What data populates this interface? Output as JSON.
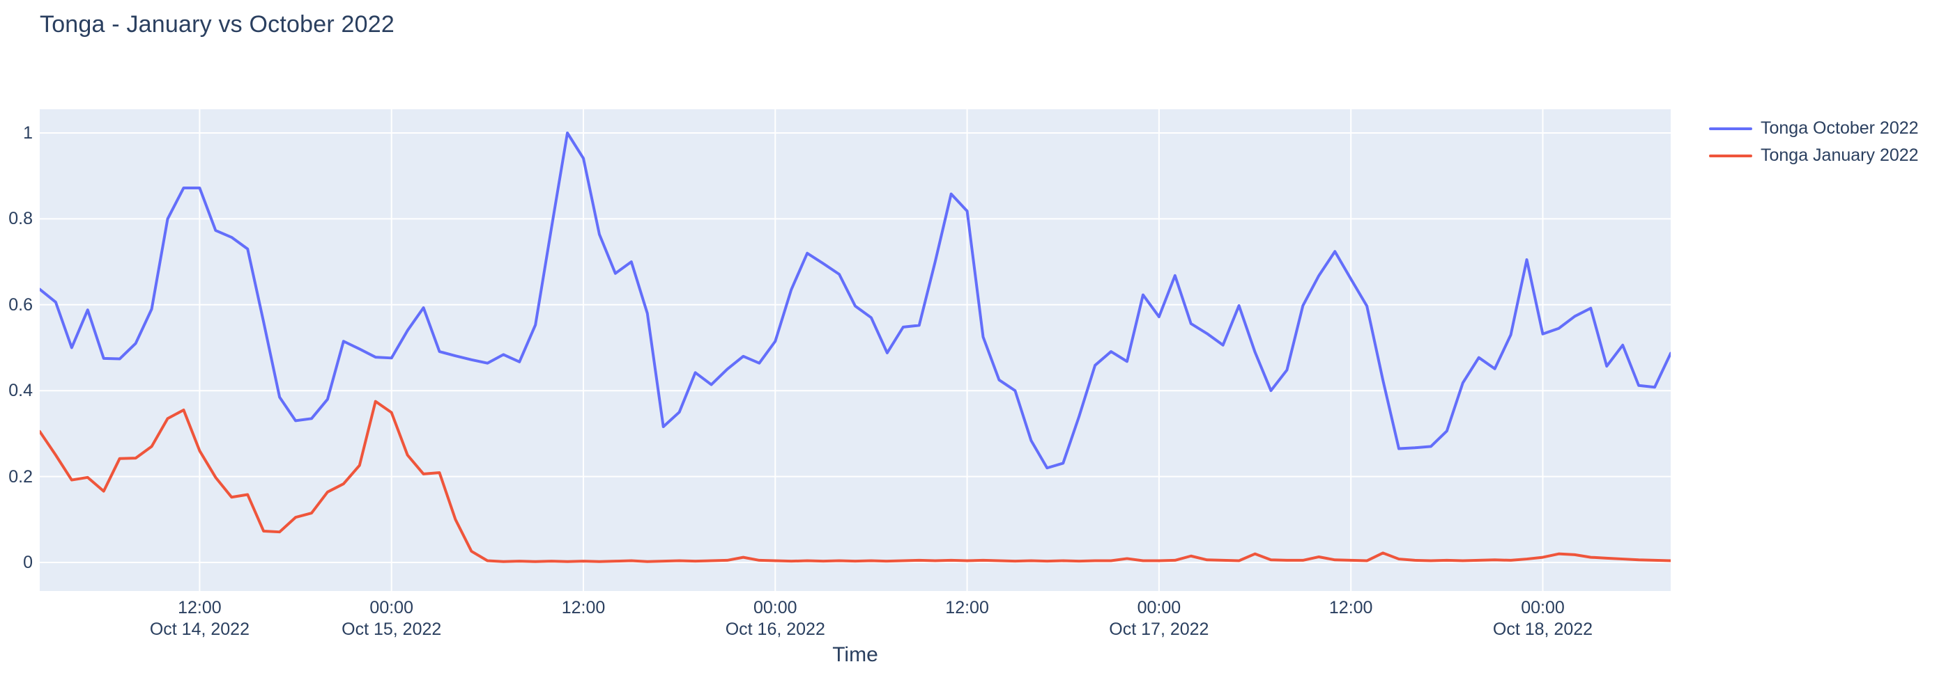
{
  "title": "Tonga - January vs October 2022",
  "colors": {
    "paper_bg": "#ffffff",
    "plot_bg": "#E5ECF6",
    "grid": "#ffffff",
    "text": "#2a3f5f",
    "series_blue": "#636EFA",
    "series_red": "#EF553B"
  },
  "chart_data": {
    "type": "line",
    "title": "Tonga - January vs October 2022",
    "xlabel": "Time",
    "ylabel": "",
    "grid": true,
    "legend_position": "top-right-outside",
    "x_start": "2022-10-14 02:00",
    "x_end": "2022-10-18 08:00",
    "x_step_hours": 1,
    "n_points": 103,
    "ylim": [
      -0.066,
      1.054
    ],
    "yticks": [
      {
        "label": "0",
        "value": 0
      },
      {
        "label": "0.2",
        "value": 0.2
      },
      {
        "label": "0.4",
        "value": 0.4
      },
      {
        "label": "0.6",
        "value": 0.6
      },
      {
        "label": "0.8",
        "value": 0.8
      },
      {
        "label": "1",
        "value": 1
      }
    ],
    "xticks": [
      {
        "time": "12:00",
        "date": "Oct 14, 2022",
        "hour_index": 10
      },
      {
        "time": "00:00",
        "date": "Oct 15, 2022",
        "hour_index": 22
      },
      {
        "time": "12:00",
        "date": "",
        "hour_index": 34
      },
      {
        "time": "00:00",
        "date": "Oct 16, 2022",
        "hour_index": 46
      },
      {
        "time": "12:00",
        "date": "",
        "hour_index": 58
      },
      {
        "time": "00:00",
        "date": "Oct 17, 2022",
        "hour_index": 70
      },
      {
        "time": "12:00",
        "date": "",
        "hour_index": 82
      },
      {
        "time": "00:00",
        "date": "Oct 18, 2022",
        "hour_index": 94
      }
    ],
    "series": [
      {
        "name": "Tonga October 2022",
        "color": "#636EFA",
        "values": [
          0.636,
          0.606,
          0.5,
          0.588,
          0.475,
          0.474,
          0.51,
          0.59,
          0.8,
          0.872,
          0.872,
          0.773,
          0.757,
          0.73,
          0.56,
          0.385,
          0.33,
          0.335,
          0.38,
          0.515,
          0.497,
          0.478,
          0.476,
          0.54,
          0.593,
          0.491,
          0.481,
          0.472,
          0.464,
          0.484,
          0.467,
          0.553,
          0.778,
          1.0,
          0.941,
          0.764,
          0.673,
          0.7,
          0.58,
          0.316,
          0.35,
          0.442,
          0.414,
          0.45,
          0.48,
          0.464,
          0.515,
          0.635,
          0.72,
          0.696,
          0.671,
          0.597,
          0.57,
          0.488,
          0.548,
          0.552,
          0.7,
          0.858,
          0.818,
          0.525,
          0.425,
          0.4,
          0.284,
          0.22,
          0.231,
          0.34,
          0.459,
          0.491,
          0.468,
          0.623,
          0.572,
          0.668,
          0.556,
          0.533,
          0.506,
          0.598,
          0.49,
          0.4,
          0.448,
          0.598,
          0.668,
          0.724,
          0.66,
          0.597,
          0.425,
          0.265,
          0.267,
          0.27,
          0.306,
          0.418,
          0.477,
          0.451,
          0.53,
          0.705,
          0.532,
          0.545,
          0.573,
          0.592,
          0.457,
          0.506,
          0.412,
          0.408,
          0.487
        ]
      },
      {
        "name": "Tonga January 2022",
        "color": "#EF553B",
        "values": [
          0.305,
          0.25,
          0.192,
          0.198,
          0.166,
          0.242,
          0.243,
          0.27,
          0.335,
          0.355,
          0.26,
          0.198,
          0.152,
          0.158,
          0.073,
          0.071,
          0.105,
          0.115,
          0.164,
          0.183,
          0.226,
          0.375,
          0.349,
          0.25,
          0.206,
          0.209,
          0.1,
          0.026,
          0.004,
          0.002,
          0.003,
          0.002,
          0.003,
          0.002,
          0.003,
          0.002,
          0.003,
          0.004,
          0.002,
          0.003,
          0.004,
          0.003,
          0.004,
          0.005,
          0.012,
          0.005,
          0.004,
          0.003,
          0.004,
          0.003,
          0.004,
          0.003,
          0.004,
          0.003,
          0.004,
          0.005,
          0.004,
          0.005,
          0.004,
          0.005,
          0.004,
          0.003,
          0.004,
          0.003,
          0.004,
          0.003,
          0.004,
          0.004,
          0.009,
          0.004,
          0.004,
          0.005,
          0.015,
          0.006,
          0.005,
          0.004,
          0.02,
          0.006,
          0.005,
          0.005,
          0.013,
          0.006,
          0.005,
          0.004,
          0.022,
          0.008,
          0.005,
          0.004,
          0.005,
          0.004,
          0.005,
          0.006,
          0.005,
          0.008,
          0.012,
          0.02,
          0.018,
          0.012,
          0.01,
          0.008,
          0.006,
          0.005,
          0.004
        ]
      }
    ]
  }
}
